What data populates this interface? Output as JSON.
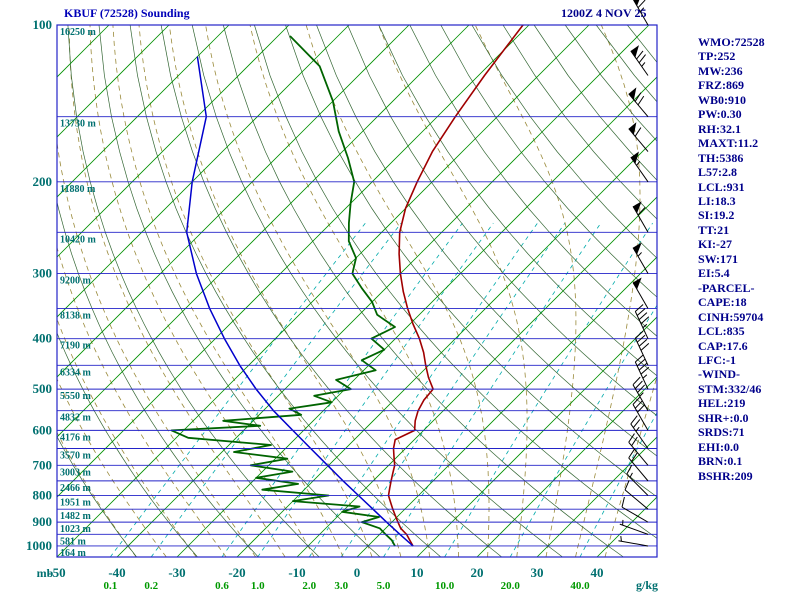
{
  "header": {
    "title": "KBUF (72528) Sounding",
    "datetime": "1200Z  4 NOV 25"
  },
  "colors": {
    "title": "#0000B8",
    "stats": "#00008B",
    "axis_text": "#007070",
    "mixing_label": "#009900",
    "isobar": "#2323C8",
    "border": "#2323C8",
    "isotherm": "#009000",
    "dry_adiabat": "#336633",
    "moist_adiabat": "#9A8A3A",
    "mixing_line": "#00AAAA",
    "temperature": "#A00000",
    "dewpoint": "#006400",
    "parcel": "#0000CC",
    "barb": "#000000"
  },
  "axes": {
    "pressure_unit": "mb",
    "mixing_unit": "g/kg",
    "pressure_labels": [
      100,
      200,
      300,
      400,
      500,
      600,
      700,
      800,
      900,
      1000
    ],
    "temp_labels": [
      -50,
      -40,
      -30,
      -20,
      -10,
      0,
      10,
      20,
      30,
      40
    ],
    "height_labels": [
      {
        "p": 100,
        "label": "16250 m"
      },
      {
        "p": 150,
        "label": "13730 m"
      },
      {
        "p": 200,
        "label": "11880 m"
      },
      {
        "p": 250,
        "label": "10420 m"
      },
      {
        "p": 300,
        "label": "9200 m"
      },
      {
        "p": 350,
        "label": "8138 m"
      },
      {
        "p": 400,
        "label": "7190 m"
      },
      {
        "p": 450,
        "label": "6334 m"
      },
      {
        "p": 500,
        "label": "5550 m"
      },
      {
        "p": 550,
        "label": "4832 m"
      },
      {
        "p": 600,
        "label": "4176 m"
      },
      {
        "p": 650,
        "label": "3570 m"
      },
      {
        "p": 700,
        "label": "3003 m"
      },
      {
        "p": 750,
        "label": "2466 m"
      },
      {
        "p": 800,
        "label": "1951 m"
      },
      {
        "p": 850,
        "label": "1482 m"
      },
      {
        "p": 900,
        "label": "1023 m"
      },
      {
        "p": 950,
        "label": "581 m"
      },
      {
        "p": 1000,
        "label": "164 m"
      }
    ]
  },
  "stats": {
    "lines": [
      "WMO:72528",
      "TP:252",
      "MW:236",
      "FRZ:869",
      "WB0:910",
      "PW:0.30",
      "RH:32.1",
      "MAXT:11.2",
      "TH:5386",
      "L57:2.8",
      "LCL:931",
      "LI:18.3",
      "SI:19.2",
      "TT:21",
      "KI:-27",
      "SW:171",
      "EI:5.4",
      "-PARCEL-",
      "CAPE:18",
      "CINH:59704",
      "LCL:835",
      "CAP:17.6",
      "LFC:-1",
      "-WIND-",
      "STM:332/46",
      "HEL:219",
      "SHR+:0.0",
      "SRDS:71",
      "EHI:0.0",
      "BRN:0.1",
      "BSHR:209"
    ]
  },
  "chart_data": {
    "type": "line",
    "subtype": "skew-t log-p sounding",
    "title": "KBUF (72528) Sounding",
    "pressure_range_mb": [
      100,
      1050
    ],
    "surface_temp_axis_c": [
      -50,
      50
    ],
    "grid": {
      "isobars": [
        100,
        150,
        200,
        250,
        300,
        350,
        400,
        450,
        500,
        550,
        600,
        650,
        700,
        750,
        800,
        850,
        900,
        950,
        1000
      ],
      "isotherms": {
        "min": -130,
        "max": 50,
        "step": 10
      },
      "dry_adiabats": {
        "min": -40,
        "max": 200,
        "step": 10
      },
      "moist_adiabats": {
        "min": -40,
        "max": 40,
        "step": 5
      },
      "mixing_lines": [
        0.1,
        0.2,
        0.6,
        1.0,
        2.0,
        3.0,
        5.0,
        10.0,
        20.0,
        40.0
      ]
    },
    "series": [
      {
        "name": "temperature",
        "color": "#A00000",
        "width": 1.6,
        "points": [
          [
            1000,
            7.5
          ],
          [
            975,
            6
          ],
          [
            950,
            4.5
          ],
          [
            925,
            2.5
          ],
          [
            900,
            1
          ],
          [
            875,
            -0.5
          ],
          [
            850,
            -2
          ],
          [
            825,
            -3.5
          ],
          [
            800,
            -5
          ],
          [
            775,
            -6
          ],
          [
            750,
            -7
          ],
          [
            725,
            -8
          ],
          [
            700,
            -9
          ],
          [
            675,
            -10.5
          ],
          [
            650,
            -12
          ],
          [
            625,
            -13.2
          ],
          [
            600,
            -11.5
          ],
          [
            575,
            -13
          ],
          [
            550,
            -14.2
          ],
          [
            525,
            -15
          ],
          [
            500,
            -15.3
          ],
          [
            475,
            -18
          ],
          [
            450,
            -20.5
          ],
          [
            425,
            -23
          ],
          [
            400,
            -26
          ],
          [
            375,
            -29.5
          ],
          [
            350,
            -33
          ],
          [
            325,
            -36.5
          ],
          [
            300,
            -40
          ],
          [
            275,
            -43.5
          ],
          [
            250,
            -47
          ],
          [
            225,
            -50
          ],
          [
            200,
            -52.5
          ],
          [
            175,
            -55
          ],
          [
            150,
            -57
          ],
          [
            125,
            -59
          ],
          [
            100,
            -61
          ]
        ]
      },
      {
        "name": "dewpoint",
        "color": "#006400",
        "width": 1.8,
        "points": [
          [
            1000,
            4.5
          ],
          [
            975,
            3
          ],
          [
            950,
            1
          ],
          [
            925,
            -1
          ],
          [
            900,
            -5
          ],
          [
            880,
            -3
          ],
          [
            860,
            -10
          ],
          [
            840,
            -8
          ],
          [
            820,
            -20
          ],
          [
            800,
            -15
          ],
          [
            780,
            -27
          ],
          [
            760,
            -22
          ],
          [
            740,
            -30
          ],
          [
            720,
            -25
          ],
          [
            700,
            -33
          ],
          [
            680,
            -28
          ],
          [
            660,
            -38
          ],
          [
            640,
            -33
          ],
          [
            620,
            -48
          ],
          [
            600,
            -52
          ],
          [
            588,
            -38
          ],
          [
            575,
            -45
          ],
          [
            560,
            -33
          ],
          [
            545,
            -36
          ],
          [
            530,
            -30
          ],
          [
            515,
            -34
          ],
          [
            500,
            -29
          ],
          [
            480,
            -33
          ],
          [
            460,
            -28
          ],
          [
            440,
            -32
          ],
          [
            420,
            -30
          ],
          [
            400,
            -34
          ],
          [
            380,
            -32
          ],
          [
            360,
            -37
          ],
          [
            340,
            -40
          ],
          [
            320,
            -44
          ],
          [
            300,
            -48
          ],
          [
            280,
            -50
          ],
          [
            260,
            -54
          ],
          [
            240,
            -57
          ],
          [
            220,
            -60
          ],
          [
            200,
            -63
          ],
          [
            180,
            -68
          ],
          [
            160,
            -74
          ],
          [
            140,
            -80
          ],
          [
            120,
            -88
          ],
          [
            105,
            -98
          ]
        ]
      },
      {
        "name": "parcel",
        "color": "#0000CC",
        "width": 1.5,
        "points": [
          [
            1000,
            7.5
          ],
          [
            950,
            3.4
          ],
          [
            900,
            -0.9
          ],
          [
            850,
            -5.3
          ],
          [
            800,
            -10
          ],
          [
            750,
            -15
          ],
          [
            700,
            -20.2
          ],
          [
            650,
            -25.8
          ],
          [
            600,
            -31.8
          ],
          [
            550,
            -38.3
          ],
          [
            500,
            -44.8
          ],
          [
            450,
            -51.5
          ],
          [
            400,
            -58.5
          ],
          [
            350,
            -66
          ],
          [
            300,
            -74
          ],
          [
            250,
            -82.5
          ],
          [
            200,
            -90
          ],
          [
            150,
            -98.5
          ],
          [
            115,
            -110
          ]
        ]
      }
    ],
    "wind_barbs": [
      [
        100,
        330,
        65
      ],
      [
        125,
        325,
        75
      ],
      [
        150,
        320,
        70
      ],
      [
        175,
        320,
        60
      ],
      [
        200,
        325,
        55
      ],
      [
        250,
        330,
        60
      ],
      [
        300,
        330,
        55
      ],
      [
        350,
        330,
        50
      ],
      [
        400,
        335,
        45
      ],
      [
        450,
        335,
        40
      ],
      [
        500,
        335,
        45
      ],
      [
        550,
        330,
        35
      ],
      [
        600,
        330,
        30
      ],
      [
        650,
        325,
        25
      ],
      [
        700,
        320,
        20
      ],
      [
        750,
        320,
        20
      ],
      [
        800,
        315,
        15
      ],
      [
        850,
        310,
        10
      ],
      [
        900,
        300,
        10
      ],
      [
        950,
        290,
        5
      ],
      [
        1000,
        280,
        5
      ]
    ]
  }
}
